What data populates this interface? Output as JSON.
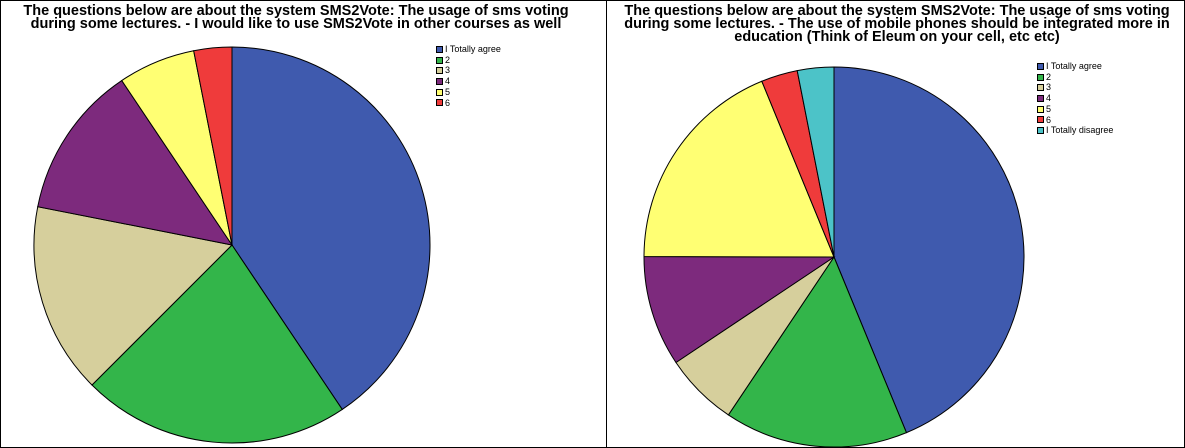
{
  "chart_data": [
    {
      "type": "pie",
      "title": "The questions below are about the system SMS2Vote: The usage of sms voting\nduring some lectures. - I would like to use SMS2Vote in other courses as well",
      "categories": [
        "I Totally agree",
        "2",
        "3",
        "4",
        "5",
        "6"
      ],
      "values": [
        40.6,
        21.9,
        15.6,
        12.5,
        6.3,
        3.1
      ],
      "colors": [
        "#3f5aae",
        "#33b54a",
        "#d6cf9c",
        "#7d2a7d",
        "#ffff73",
        "#ef3b3b"
      ],
      "legend_position": "top-right",
      "start_angle": "12 o'clock, clockwise"
    },
    {
      "type": "pie",
      "title": "The questions below are about the system SMS2Vote: The usage of sms voting\nduring some lectures. - The use of mobile phones should be integrated more in\neducation (Think of Eleum on your cell, etc etc)",
      "categories": [
        "I Totally agree",
        "2",
        "3",
        "4",
        "5",
        "6",
        "I Totally disagree"
      ],
      "values": [
        43.75,
        15.6,
        6.25,
        9.4,
        18.75,
        3.1,
        3.1
      ],
      "colors": [
        "#3f5aae",
        "#33b54a",
        "#d6cf9c",
        "#7d2a7d",
        "#ffff73",
        "#ef3b3b",
        "#4cc3c8"
      ],
      "legend_position": "top-right",
      "start_angle": "12 o'clock, clockwise"
    }
  ]
}
